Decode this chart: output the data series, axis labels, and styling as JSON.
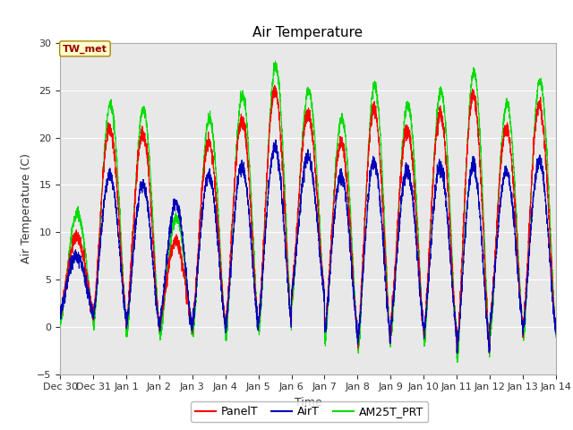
{
  "title": "Air Temperature",
  "ylabel": "Air Temperature (C)",
  "xlabel": "Time",
  "annotation": "TW_met",
  "ylim": [
    -5,
    30
  ],
  "yticks": [
    -5,
    0,
    5,
    10,
    15,
    20,
    25,
    30
  ],
  "xtick_labels": [
    "Dec 30",
    "Dec 31",
    "Jan 1",
    "Jan 2",
    "Jan 3",
    "Jan 4",
    "Jan 5",
    "Jan 6",
    "Jan 7",
    "Jan 8",
    "Jan 9",
    "Jan 10",
    "Jan 11",
    "Jan 12",
    "Jan 13",
    "Jan 14"
  ],
  "legend_labels": [
    "PanelT",
    "AirT",
    "AM25T_PRT"
  ],
  "line_colors": [
    "#ff0000",
    "#0000bb",
    "#00dd00"
  ],
  "bg_color": "#e8e8e8",
  "title_fontsize": 11,
  "axis_fontsize": 9,
  "tick_fontsize": 8
}
